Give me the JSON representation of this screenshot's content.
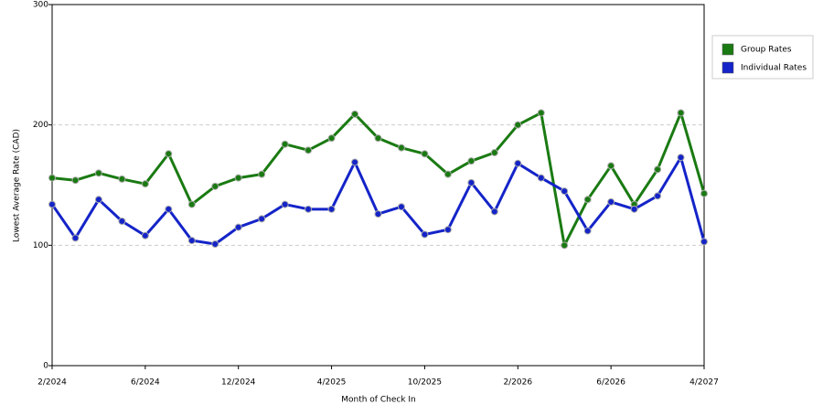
{
  "chart_data": {
    "type": "line",
    "y_label": "Lowest Average Rate (CAD)",
    "x_label": "Month of Check In",
    "categories": [
      "2/2024",
      null,
      null,
      null,
      "6/2024",
      null,
      null,
      null,
      "12/2024",
      null,
      null,
      null,
      "4/2025",
      null,
      null,
      null,
      "10/2025",
      null,
      null,
      null,
      "2/2026",
      null,
      null,
      null,
      "6/2026",
      null,
      null,
      null,
      "4/2027"
    ],
    "series": [
      {
        "name": "Group Rates",
        "color": "#1a7a12",
        "values": [
          156,
          154,
          160,
          155,
          151,
          176,
          134,
          149,
          156,
          159,
          184,
          179,
          189,
          209,
          189,
          181,
          176,
          159,
          170,
          177,
          200,
          210,
          100,
          138,
          166,
          134,
          163,
          210,
          143
        ]
      },
      {
        "name": "Individual Rates",
        "color": "#1424c8",
        "values": [
          134,
          106,
          138,
          120,
          108,
          130,
          104,
          101,
          115,
          122,
          134,
          130,
          130,
          169,
          126,
          132,
          109,
          113,
          152,
          128,
          168,
          156,
          145,
          112,
          136,
          130,
          141,
          173,
          103
        ]
      }
    ],
    "ylim": [
      0,
      300
    ],
    "yticks": [
      0,
      100,
      200,
      300
    ],
    "grid": true
  }
}
